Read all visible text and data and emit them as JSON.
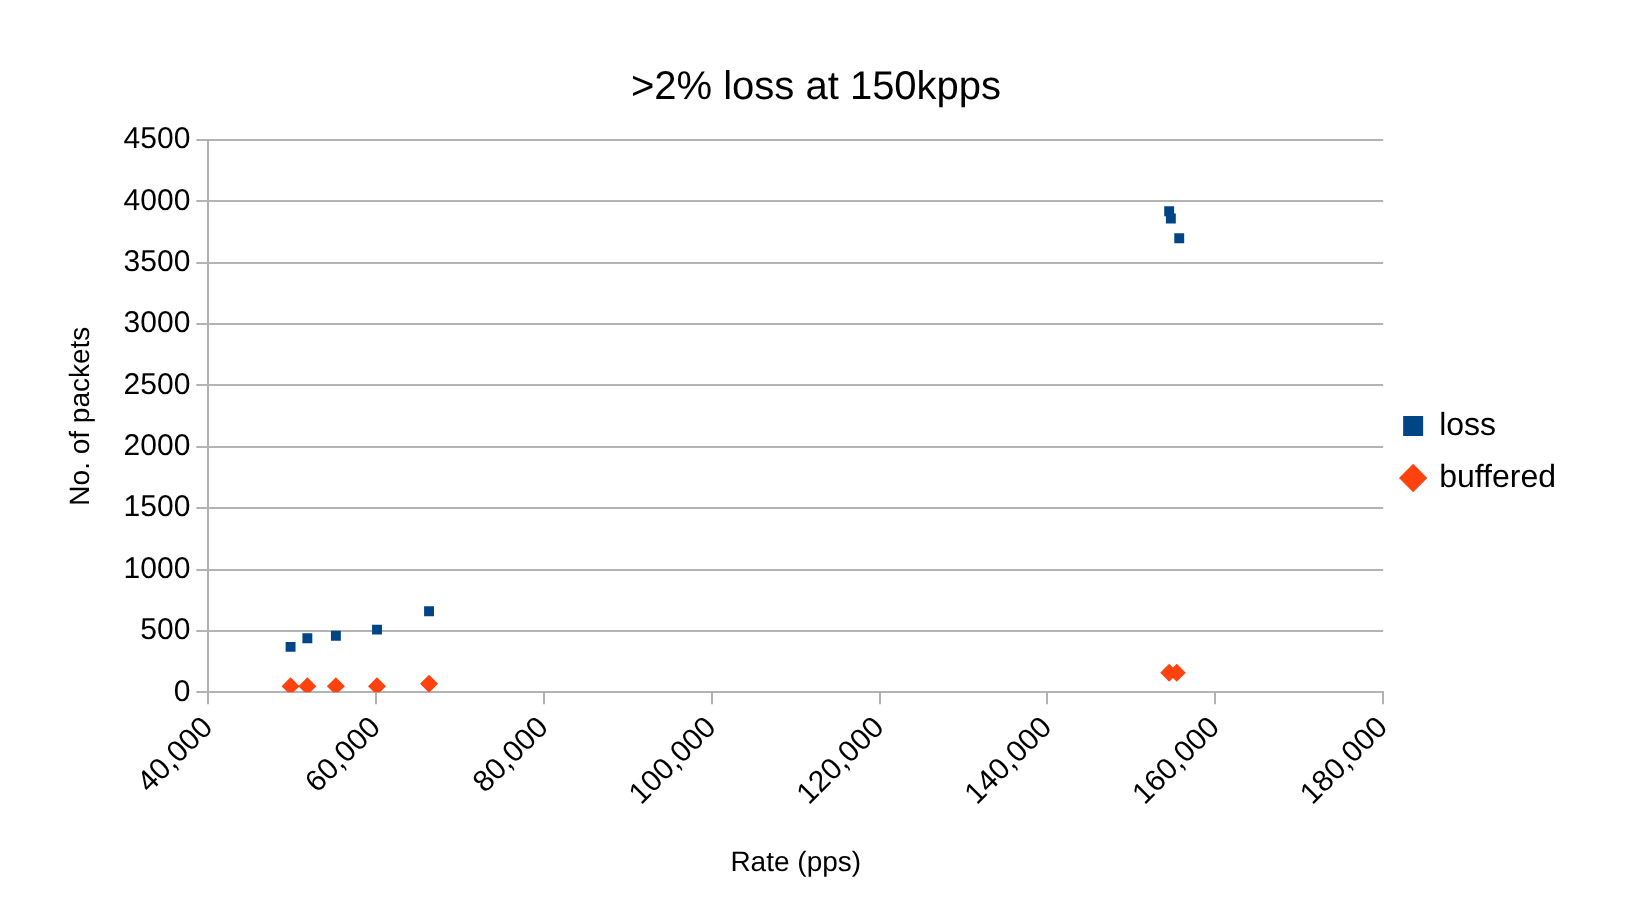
{
  "chart_data": {
    "type": "scatter",
    "title": ">2% loss at 150kpps",
    "xlabel": "Rate (pps)",
    "ylabel": "No. of packets",
    "series": [
      {
        "name": "loss",
        "color": "#004586",
        "marker": "square",
        "x": [
          49800,
          51800,
          55200,
          60100,
          66300,
          154500,
          154700,
          155700
        ],
        "values": [
          370,
          440,
          460,
          510,
          660,
          3920,
          3860,
          3700
        ]
      },
      {
        "name": "buffered",
        "color": "#ff420e",
        "marker": "diamond",
        "x": [
          49800,
          51800,
          55200,
          60100,
          66300,
          154500,
          155400
        ],
        "values": [
          50,
          50,
          50,
          50,
          70,
          160,
          160
        ]
      }
    ],
    "xlim": [
      40000,
      180000
    ],
    "xticks": [
      {
        "value": 40000,
        "label": "40,000"
      },
      {
        "value": 60000,
        "label": "60,000"
      },
      {
        "value": 80000,
        "label": "80,000"
      },
      {
        "value": 100000,
        "label": "100,000"
      },
      {
        "value": 120000,
        "label": "120,000"
      },
      {
        "value": 140000,
        "label": "140,000"
      },
      {
        "value": 160000,
        "label": "160,000"
      },
      {
        "value": 180000,
        "label": "180,000"
      }
    ],
    "ylim": [
      0,
      4500
    ],
    "yticks": [
      0,
      500,
      1000,
      1500,
      2000,
      2500,
      3000,
      3500,
      4000,
      4500
    ],
    "grid": "y",
    "legend": "right"
  }
}
